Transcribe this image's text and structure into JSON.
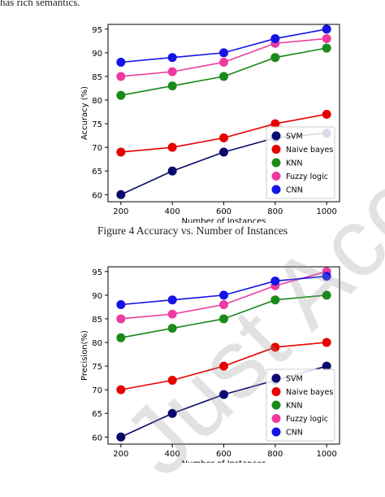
{
  "document": {
    "top_text_fragment": "has rich semantics.",
    "figure_caption": "Figure 4 Accuracy vs. Number of Instances",
    "watermark_text": "Just Accepted"
  },
  "chart_data": [
    {
      "type": "line",
      "x": [
        200,
        400,
        600,
        800,
        1000
      ],
      "xlabel": "Number of Instances",
      "ylabel": "Accuracy (%)",
      "ylim": [
        58.5,
        96
      ],
      "yticks": [
        60,
        65,
        70,
        75,
        80,
        85,
        90,
        95
      ],
      "legend_position": "lower-right",
      "series": [
        {
          "name": "SVM",
          "color": "#0a0a6e",
          "values": [
            60,
            65,
            69,
            72,
            73
          ]
        },
        {
          "name": "Naive bayes",
          "color": "#e60000",
          "values": [
            69,
            70,
            72,
            75,
            77
          ]
        },
        {
          "name": "KNN",
          "color": "#1a8a1a",
          "values": [
            81,
            83,
            85,
            89,
            91
          ]
        },
        {
          "name": "Fuzzy logic",
          "color": "#ee3aa0",
          "values": [
            85,
            86,
            88,
            92,
            93
          ]
        },
        {
          "name": "CNN",
          "color": "#1414e6",
          "values": [
            88,
            89,
            90,
            93,
            95
          ]
        }
      ]
    },
    {
      "type": "line",
      "x": [
        200,
        400,
        600,
        800,
        1000
      ],
      "xlabel": "Number of Instances",
      "ylabel": "Precision(%)",
      "ylim": [
        58.5,
        96
      ],
      "yticks": [
        60,
        65,
        70,
        75,
        80,
        85,
        90,
        95
      ],
      "legend_position": "lower-right",
      "series": [
        {
          "name": "SVM",
          "color": "#0a0a6e",
          "values": [
            60,
            65,
            69,
            72,
            75
          ]
        },
        {
          "name": "Naive bayes",
          "color": "#e60000",
          "values": [
            70,
            72,
            75,
            79,
            80
          ]
        },
        {
          "name": "KNN",
          "color": "#1a8a1a",
          "values": [
            81,
            83,
            85,
            89,
            90
          ]
        },
        {
          "name": "Fuzzy logic",
          "color": "#ee3aa0",
          "values": [
            85,
            86,
            88,
            92,
            95
          ]
        },
        {
          "name": "CNN",
          "color": "#1414e6",
          "values": [
            88,
            89,
            90,
            93,
            94
          ]
        }
      ]
    }
  ]
}
